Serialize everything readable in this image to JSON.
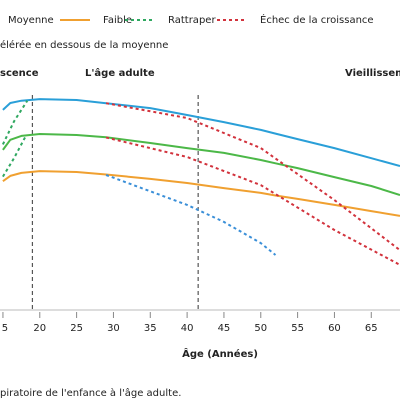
{
  "chart_data": {
    "type": "line",
    "xlabel": "Âge (Années)",
    "caption": "piratoire de l'enfance à l'âge adulte.",
    "phase_labels": [
      "scence",
      "L'âge adulte",
      "Vieillisseme"
    ],
    "xlim": [
      14.6,
      68.9
    ],
    "ylim": [
      0,
      100
    ],
    "xticks": [
      {
        "value": 15,
        "label": "5"
      },
      20,
      25,
      30,
      35,
      40,
      45,
      50,
      55,
      60,
      65
    ],
    "vlines": [
      19,
      41.5
    ],
    "series": [
      {
        "color": "#2a9fd8",
        "dash": "solid",
        "x": [
          15,
          16,
          17.5,
          20,
          25,
          29,
          35,
          40,
          45,
          50,
          52,
          55,
          60,
          65,
          68.9
        ],
        "values": [
          87,
          90,
          91,
          91.7,
          91.3,
          89.9,
          87.8,
          84.8,
          81.7,
          78.3,
          76.7,
          74.3,
          70.4,
          66,
          62.6
        ]
      },
      {
        "name": "Moyenne",
        "color": "#4cb848",
        "dash": "solid",
        "x": [
          15,
          16,
          17.5,
          20,
          25,
          29,
          35,
          40,
          45,
          50,
          52,
          55,
          60,
          65,
          68.9
        ],
        "values": [
          69.6,
          74,
          75.7,
          76.5,
          76.1,
          75.1,
          72.6,
          70.4,
          68.3,
          65.2,
          63.8,
          61.7,
          57.8,
          53.9,
          50
        ]
      },
      {
        "name": "Faible",
        "color": "#f0a030",
        "dash": "solid",
        "x": [
          15,
          16,
          17.5,
          20,
          25,
          29,
          35,
          40,
          45,
          50,
          52,
          55,
          60,
          65,
          68.9
        ],
        "values": [
          56,
          58.3,
          59.6,
          60.4,
          60,
          58.9,
          57,
          55.2,
          53,
          50.9,
          49.8,
          48.3,
          45.7,
          43,
          40.9
        ]
      },
      {
        "name": "Rattraper",
        "color": "#2fa860",
        "dash": "dotted",
        "x": [
          15,
          16.5,
          18
        ],
        "values": [
          58,
          66,
          75
        ]
      },
      {
        "color": "#2fa860",
        "dash": "dotted",
        "x": [
          15,
          16.5,
          18.3
        ],
        "values": [
          72,
          82,
          91
        ]
      },
      {
        "name": "Échec de la croissance",
        "color": "#d2323c",
        "dash": "dotted",
        "x": [
          29,
          40,
          50,
          60,
          68.9
        ],
        "values": [
          89.9,
          83.5,
          70.4,
          47.8,
          26
        ]
      },
      {
        "color": "#d2323c",
        "dash": "dotted",
        "x": [
          29,
          40,
          50,
          60,
          68.9
        ],
        "values": [
          75,
          66.5,
          54.3,
          34.8,
          19.6
        ]
      },
      {
        "name": "élérée en dessous de la moyenne",
        "color": "#3a8fd8",
        "dash": "dotted",
        "x": [
          29,
          40,
          45,
          50,
          52
        ],
        "values": [
          58.7,
          45.7,
          38.3,
          29.1,
          23.9
        ]
      }
    ]
  }
}
